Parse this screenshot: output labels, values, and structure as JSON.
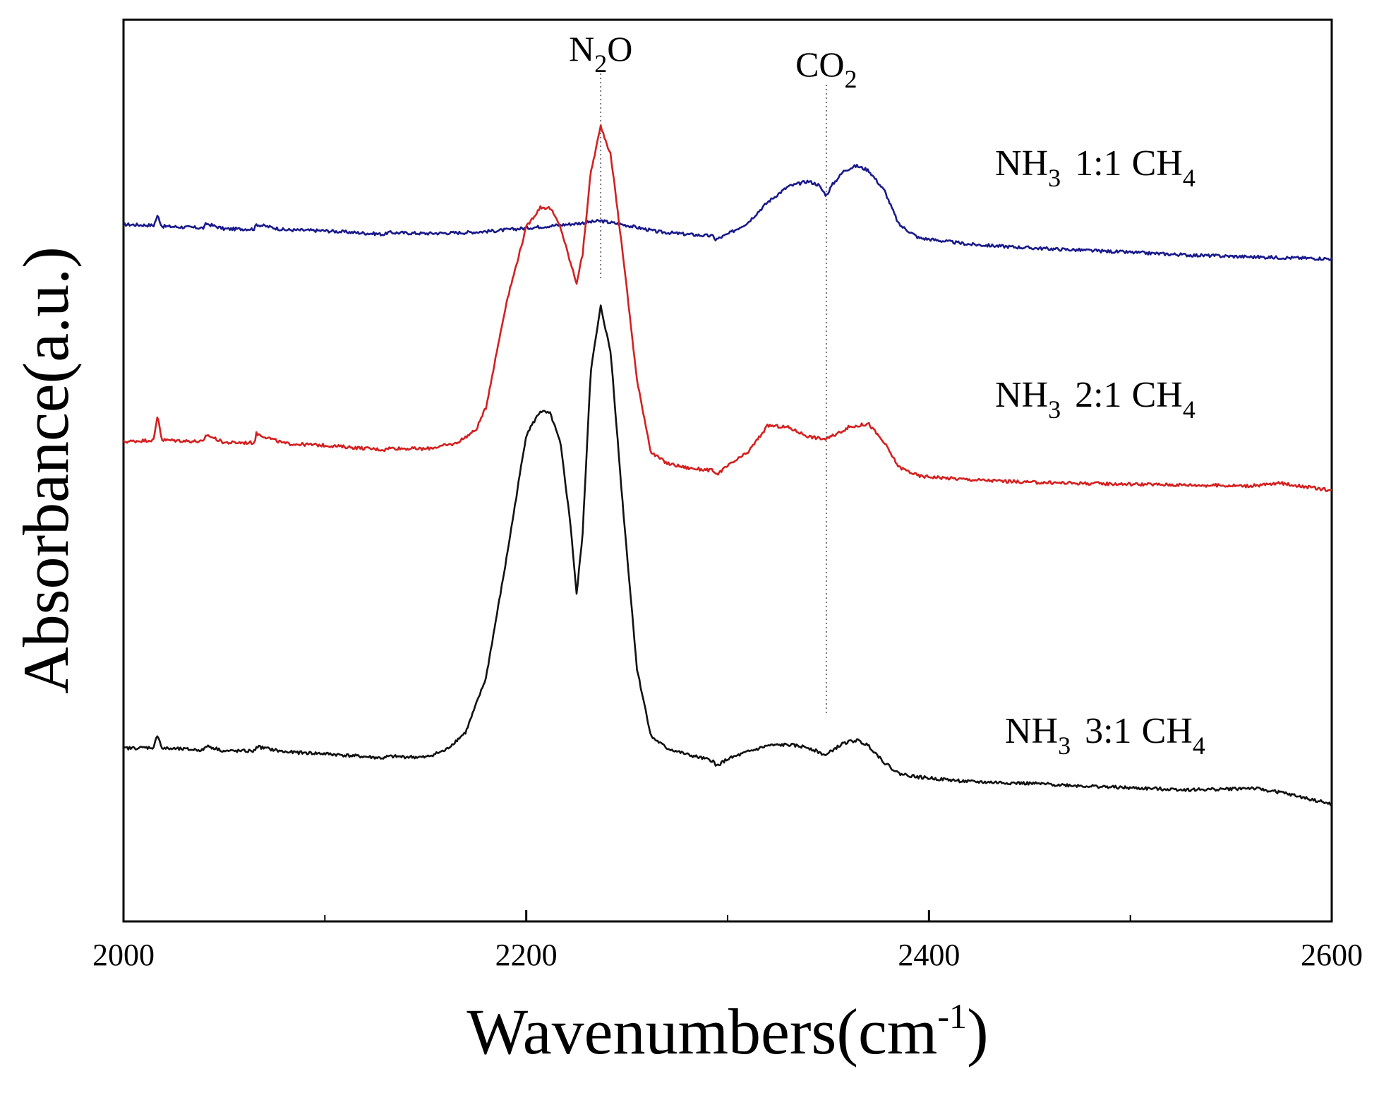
{
  "chart_data": {
    "type": "line",
    "title": "",
    "xlabel": "Wavenumbers(cm",
    "xlabel_superscript": "-1",
    "xlabel_close": ")",
    "ylabel": "Absorbance(a.u.)",
    "xlim": [
      2000,
      2600
    ],
    "ylim": [
      0,
      1
    ],
    "x_ticks": [
      2000,
      2200,
      2400,
      2600
    ],
    "x_minor_ticks": [
      2100,
      2300,
      2500
    ],
    "y_ticks": [],
    "grid": false,
    "annotations": [
      {
        "id": "n2o",
        "base": "N",
        "subscript": "2",
        "suffix": "O",
        "x": 2237
      },
      {
        "id": "co2",
        "base": "CO",
        "subscript": "2",
        "suffix": "",
        "x": 2349
      }
    ],
    "series": [
      {
        "name": "NH3 1:1 CH4",
        "label_parts": {
          "a": "NH",
          "a_sub": "3",
          "ratio": "1:1",
          "b": "CH",
          "b_sub": "4"
        },
        "color": "#1a1a8c",
        "x": [
          2000,
          2015,
          2017,
          2019,
          2030,
          2040,
          2041,
          2050,
          2065,
          2066,
          2080,
          2100,
          2130,
          2131,
          2150,
          2170,
          2185,
          2200,
          2215,
          2225,
          2237,
          2250,
          2265,
          2280,
          2293,
          2294,
          2300,
          2310,
          2320,
          2330,
          2340,
          2345,
          2349,
          2352,
          2358,
          2364,
          2370,
          2378,
          2385,
          2395,
          2420,
          2450,
          2500,
          2530,
          2560,
          2600
        ],
        "y": [
          0.773,
          0.772,
          0.783,
          0.771,
          0.77,
          0.769,
          0.774,
          0.768,
          0.768,
          0.773,
          0.767,
          0.766,
          0.762,
          0.764,
          0.763,
          0.764,
          0.766,
          0.769,
          0.772,
          0.774,
          0.777,
          0.772,
          0.765,
          0.762,
          0.76,
          0.756,
          0.762,
          0.775,
          0.798,
          0.815,
          0.821,
          0.817,
          0.805,
          0.817,
          0.833,
          0.838,
          0.833,
          0.81,
          0.773,
          0.758,
          0.751,
          0.747,
          0.742,
          0.739,
          0.737,
          0.735
        ]
      },
      {
        "name": "NH3 2:1 CH4",
        "label_parts": {
          "a": "NH",
          "a_sub": "3",
          "ratio": "2:1",
          "b": "CH",
          "b_sub": "4"
        },
        "color": "#d42020",
        "x": [
          2000,
          2015,
          2017,
          2019,
          2030,
          2040,
          2041,
          2050,
          2065,
          2066,
          2080,
          2100,
          2130,
          2131,
          2150,
          2165,
          2175,
          2180,
          2190,
          2200,
          2207,
          2212,
          2217,
          2222,
          2225,
          2228,
          2232,
          2237,
          2242,
          2248,
          2255,
          2262,
          2270,
          2280,
          2293,
          2294,
          2300,
          2310,
          2320,
          2330,
          2340,
          2345,
          2349,
          2352,
          2360,
          2370,
          2378,
          2385,
          2395,
          2420,
          2450,
          2500,
          2530,
          2560,
          2575,
          2600
        ],
        "y": [
          0.532,
          0.534,
          0.562,
          0.534,
          0.533,
          0.532,
          0.54,
          0.531,
          0.531,
          0.541,
          0.53,
          0.528,
          0.523,
          0.525,
          0.524,
          0.53,
          0.545,
          0.57,
          0.685,
          0.77,
          0.792,
          0.791,
          0.77,
          0.73,
          0.708,
          0.74,
          0.83,
          0.882,
          0.85,
          0.74,
          0.6,
          0.52,
          0.508,
          0.503,
          0.5,
          0.495,
          0.505,
          0.52,
          0.55,
          0.548,
          0.538,
          0.536,
          0.535,
          0.538,
          0.548,
          0.552,
          0.53,
          0.504,
          0.494,
          0.49,
          0.487,
          0.485,
          0.484,
          0.483,
          0.486,
          0.478
        ]
      },
      {
        "name": "NH3 3:1 CH4",
        "label_parts": {
          "a": "NH",
          "a_sub": "3",
          "ratio": "3:1",
          "b": "CH",
          "b_sub": "4"
        },
        "color": "#111111",
        "x": [
          2000,
          2015,
          2017,
          2019,
          2030,
          2040,
          2041,
          2050,
          2065,
          2066,
          2080,
          2100,
          2130,
          2131,
          2150,
          2160,
          2170,
          2180,
          2190,
          2200,
          2207,
          2212,
          2217,
          2222,
          2225,
          2228,
          2232,
          2237,
          2242,
          2248,
          2255,
          2262,
          2270,
          2280,
          2293,
          2294,
          2300,
          2310,
          2320,
          2330,
          2340,
          2345,
          2349,
          2352,
          2358,
          2364,
          2370,
          2378,
          2385,
          2395,
          2420,
          2450,
          2500,
          2530,
          2550,
          2560,
          2575,
          2600
        ],
        "y": [
          0.192,
          0.193,
          0.208,
          0.192,
          0.191,
          0.19,
          0.195,
          0.189,
          0.189,
          0.194,
          0.188,
          0.186,
          0.181,
          0.183,
          0.182,
          0.19,
          0.21,
          0.27,
          0.4,
          0.54,
          0.566,
          0.563,
          0.53,
          0.44,
          0.362,
          0.43,
          0.61,
          0.682,
          0.63,
          0.46,
          0.28,
          0.205,
          0.192,
          0.185,
          0.178,
          0.172,
          0.18,
          0.188,
          0.195,
          0.196,
          0.193,
          0.188,
          0.184,
          0.19,
          0.198,
          0.201,
          0.195,
          0.176,
          0.164,
          0.16,
          0.155,
          0.153,
          0.148,
          0.146,
          0.147,
          0.148,
          0.143,
          0.13
        ]
      }
    ]
  }
}
